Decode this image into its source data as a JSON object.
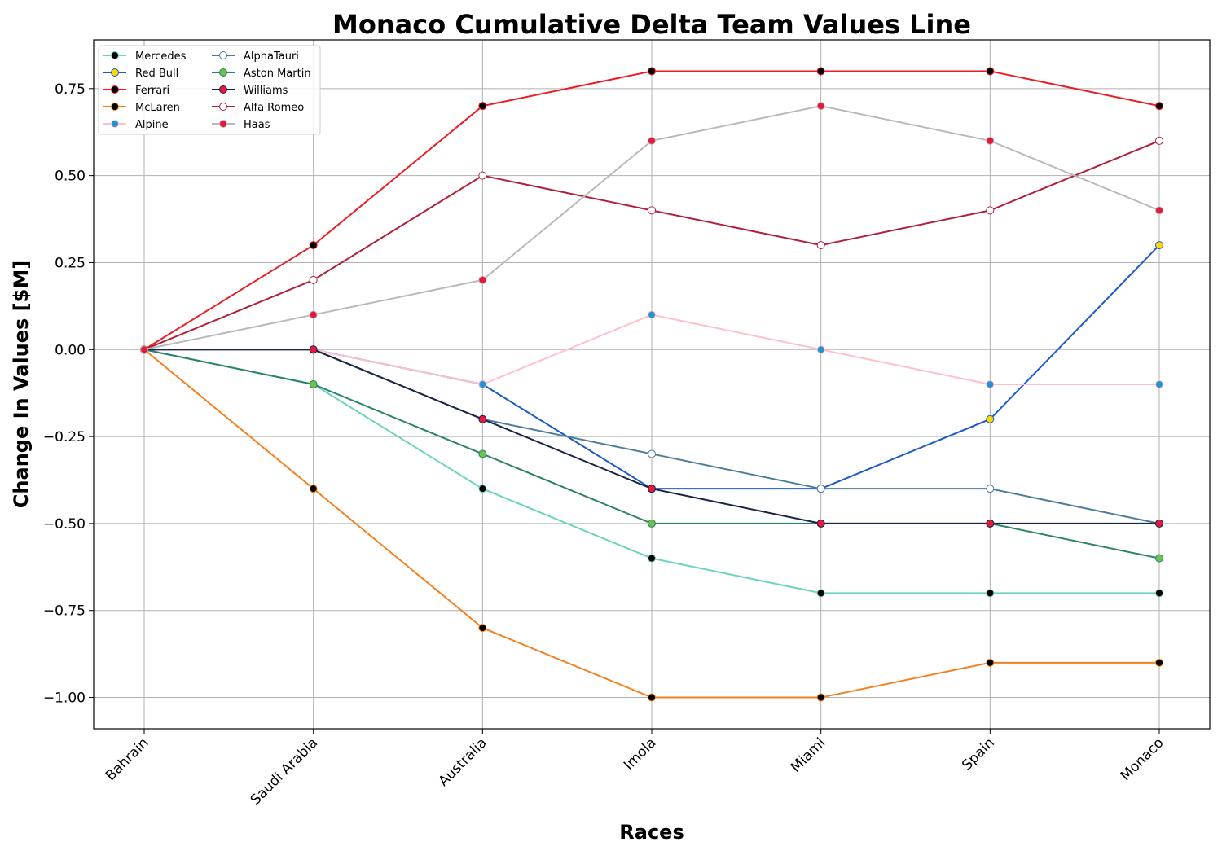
{
  "chart_data": {
    "type": "line",
    "title": "Monaco Cumulative Delta Team Values Line",
    "xlabel": "Races",
    "ylabel": "Change In Values [$M]",
    "categories": [
      "Bahrain",
      "Saudi Arabia",
      "Australia",
      "Imola",
      "Miami",
      "Spain",
      "Monaco"
    ],
    "ylim": [
      -1.09,
      0.89
    ],
    "yticks": [
      -1.0,
      -0.75,
      -0.5,
      -0.25,
      0.0,
      0.25,
      0.5,
      0.75
    ],
    "ytick_labels": [
      "−1.00",
      "−0.75",
      "−0.50",
      "−0.25",
      "0.00",
      "0.25",
      "0.50",
      "0.75"
    ],
    "grid": true,
    "legend_position": "top-left",
    "series": [
      {
        "name": "Mercedes",
        "line_color": "#6cd3bf",
        "marker_color": "#000000",
        "values": [
          0,
          -0.1,
          -0.4,
          -0.6,
          -0.7,
          -0.7,
          -0.7
        ]
      },
      {
        "name": "Red Bull",
        "line_color": "#1e5bc6",
        "marker_color": "#fcd700",
        "values": [
          0,
          0,
          -0.1,
          -0.4,
          -0.4,
          -0.2,
          0.3
        ]
      },
      {
        "name": "Ferrari",
        "line_color": "#ed1c24",
        "marker_color": "#000000",
        "values": [
          0,
          0.3,
          0.7,
          0.8,
          0.8,
          0.8,
          0.7
        ]
      },
      {
        "name": "McLaren",
        "line_color": "#f58020",
        "marker_color": "#000000",
        "values": [
          0,
          -0.4,
          -0.8,
          -1.0,
          -1.0,
          -0.9,
          -0.9
        ]
      },
      {
        "name": "Alpine",
        "line_color": "#ffc0cb",
        "marker_color": "#2293d1",
        "values": [
          0,
          0,
          -0.1,
          0.1,
          0,
          -0.1,
          -0.1
        ]
      },
      {
        "name": "AlphaTauri",
        "line_color": "#4e7c9b",
        "marker_color": "#ffffff",
        "values": [
          0,
          0,
          -0.2,
          -0.3,
          -0.4,
          -0.4,
          -0.5
        ]
      },
      {
        "name": "Aston Martin",
        "line_color": "#2d826d",
        "marker_color": "#6cc24a",
        "values": [
          0,
          -0.1,
          -0.3,
          -0.5,
          -0.5,
          -0.5,
          -0.6
        ]
      },
      {
        "name": "Williams",
        "line_color": "#1a2444",
        "marker_color": "#e6193c",
        "values": [
          0,
          0,
          -0.2,
          -0.4,
          -0.5,
          -0.5,
          -0.5
        ]
      },
      {
        "name": "Alfa Romeo",
        "line_color": "#b12039",
        "marker_color": "#ffffff",
        "values": [
          0,
          0.2,
          0.5,
          0.4,
          0.3,
          0.4,
          0.6
        ]
      },
      {
        "name": "Haas",
        "line_color": "#b6babd",
        "marker_color": "#e6193c",
        "values": [
          0,
          0.1,
          0.2,
          0.6,
          0.7,
          0.6,
          0.4
        ]
      }
    ]
  }
}
